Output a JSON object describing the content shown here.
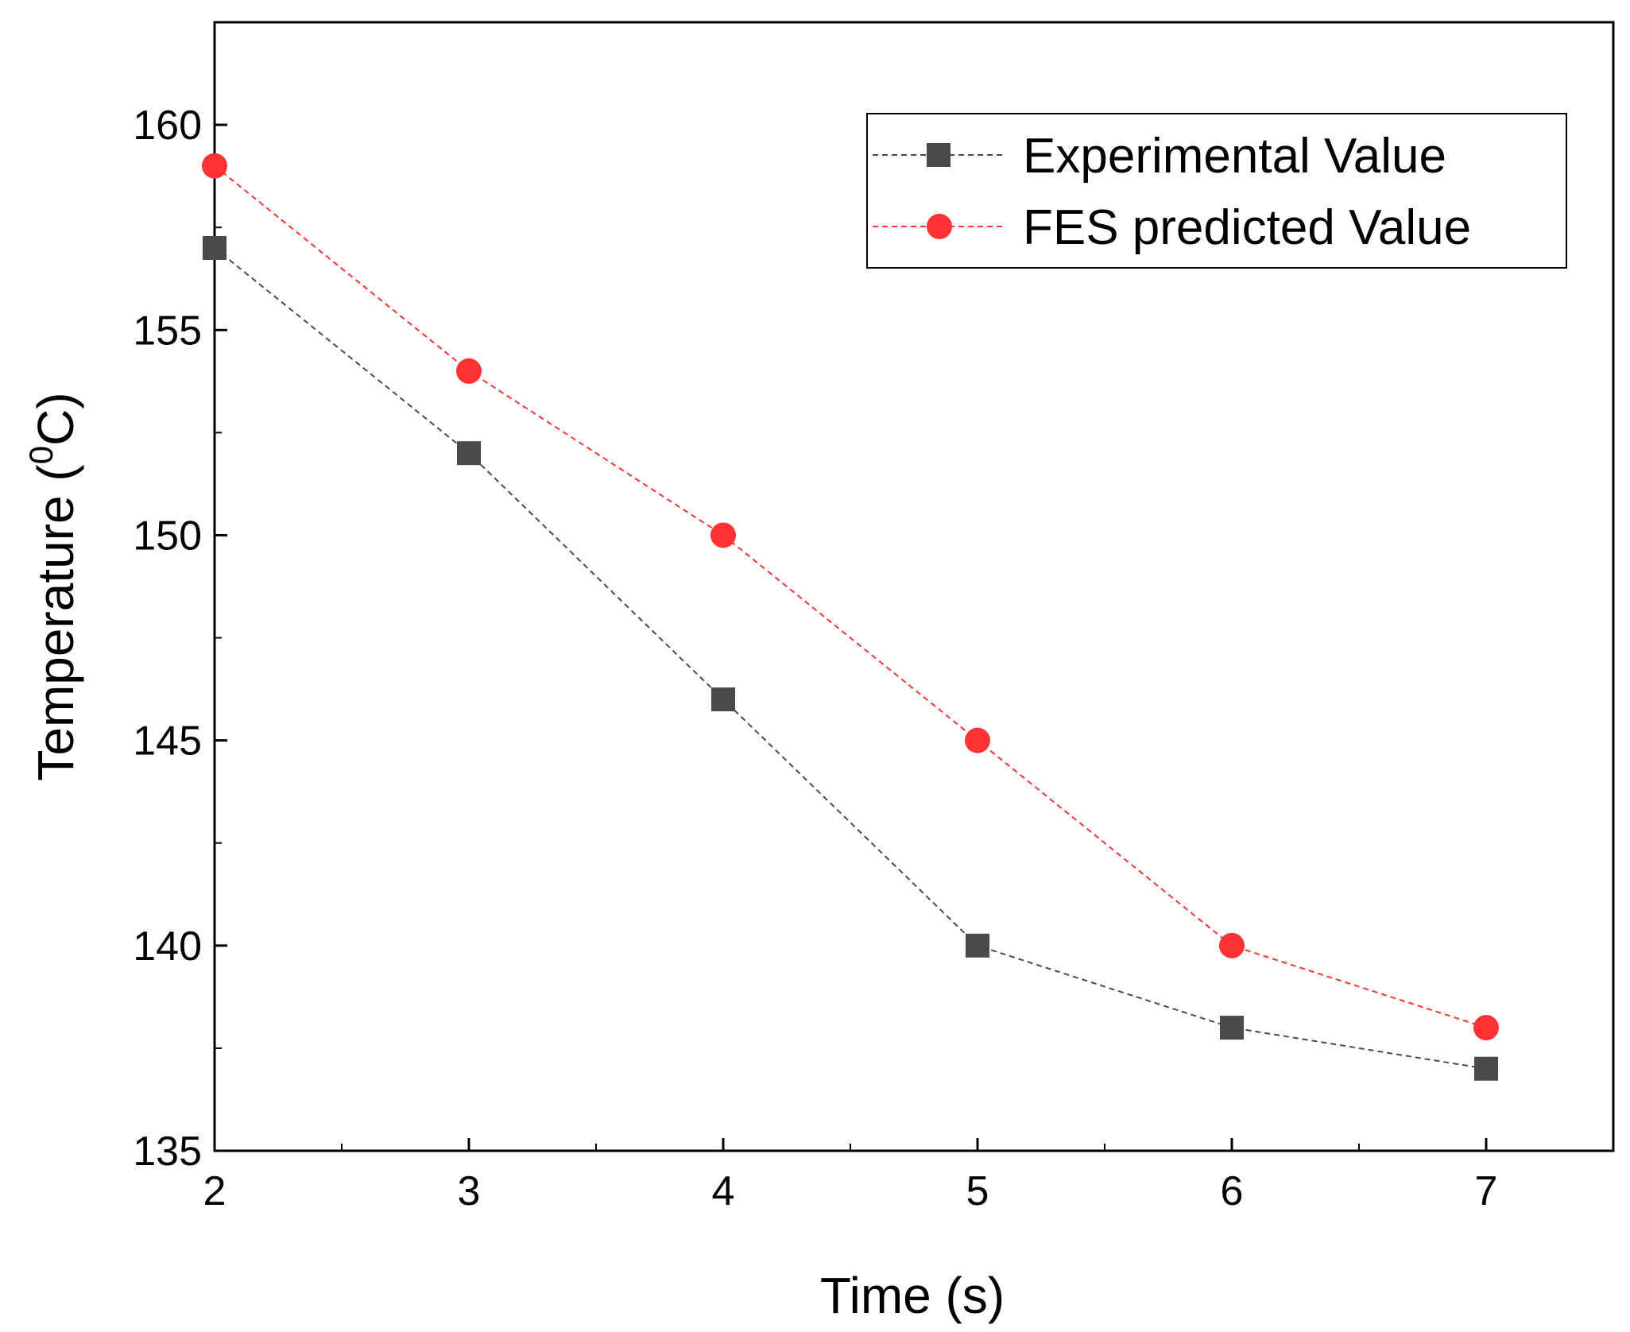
{
  "chart_data": {
    "type": "line",
    "title": "",
    "xlabel": "Time (s)",
    "ylabel": {
      "main": "Temperature (",
      "superscript": "0",
      "unit": "C)"
    },
    "xlim": [
      2,
      7.5
    ],
    "ylim": [
      135,
      162.5
    ],
    "xticks": [
      2,
      3,
      4,
      5,
      6,
      7
    ],
    "yticks": [
      135,
      140,
      145,
      150,
      155,
      160
    ],
    "x": [
      2,
      3,
      4,
      5,
      6,
      7
    ],
    "grid": false,
    "legend_position": "top-right",
    "series": [
      {
        "name": "Experimental Value",
        "marker": "square",
        "line_style": "dashed",
        "color": "#4a4a4a",
        "values": [
          157,
          152,
          146,
          140,
          138,
          137
        ]
      },
      {
        "name": "FES predicted Value",
        "marker": "circle",
        "line_style": "dashed",
        "color": "#ff3333",
        "values": [
          159,
          154,
          150,
          145,
          140,
          138
        ]
      }
    ]
  }
}
